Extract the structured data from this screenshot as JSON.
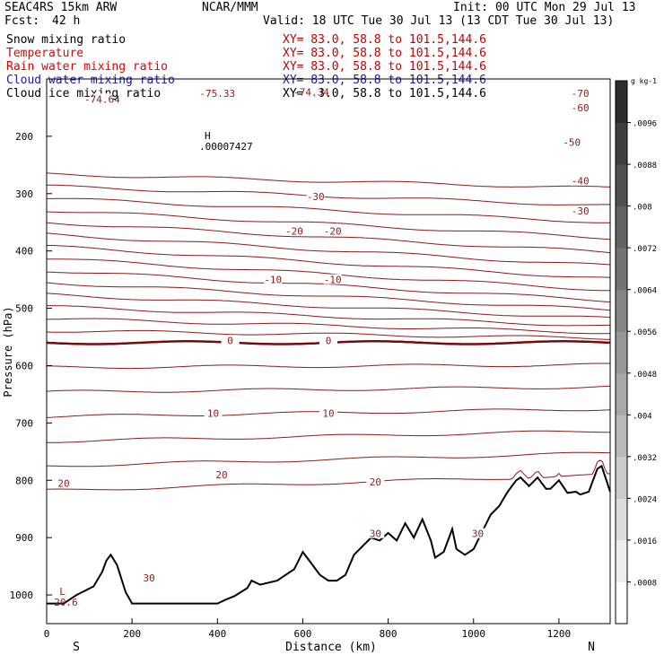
{
  "header": {
    "model": "SEAC4RS 15km ARW",
    "center": "NCAR/MMM",
    "init": "Init: 00 UTC Mon 29 Jul 13",
    "fcst_label": "Fcst:",
    "fcst_value": "42 h",
    "valid": "Valid: 18 UTC Tue 30 Jul 13 (13 CDT Tue 30 Jul 13)"
  },
  "fields": [
    {
      "name": "Snow mixing ratio",
      "xy": "XY= 83.0, 58.8 to 101.5,144.6",
      "color": "#000000"
    },
    {
      "name": "Temperature",
      "xy": "XY= 83.0, 58.8 to 101.5,144.6",
      "color": "#b01818"
    },
    {
      "name": "Rain water mixing ratio",
      "xy": "XY= 83.0, 58.8 to 101.5,144.6",
      "color": "#e00000"
    },
    {
      "name": "Cloud water mixing ratio",
      "xy": "XY= 83.0, 58.8 to 101.5,144.6",
      "color": "#1a1aa0"
    },
    {
      "name": "Cloud ice mixing ratio",
      "xy": "XY= 83.0, 58.8 to 101.5,144.6",
      "color": "#000000"
    }
  ],
  "chart_data": {
    "type": "cross-section",
    "xlabel": "Distance (km)",
    "ylabel": "Pressure (hPa)",
    "xlim": [
      0,
      1320
    ],
    "ylim": [
      1050,
      100
    ],
    "x_ticks": [
      "0",
      "200",
      "400",
      "600",
      "800",
      "1000",
      "1200"
    ],
    "x_tick_values": [
      0,
      200,
      400,
      600,
      800,
      1000,
      1200
    ],
    "y_ticks": [
      "200",
      "300",
      "400",
      "500",
      "600",
      "700",
      "800",
      "900",
      "1000"
    ],
    "y_tick_values": [
      200,
      300,
      400,
      500,
      600,
      700,
      800,
      900,
      1000
    ],
    "x_end_labels": {
      "left": "S",
      "right": "N"
    },
    "temperature_contour_interval_C": 5,
    "temperature_contour_labels": [
      {
        "text": "-75.33",
        "x": 400,
        "p": 125
      },
      {
        "text": "-74.64",
        "x": 130,
        "p": 135
      },
      {
        "text": "-74.34",
        "x": 620,
        "p": 123
      },
      {
        "text": "-70",
        "x": 1250,
        "p": 125
      },
      {
        "text": "-60",
        "x": 1250,
        "p": 150
      },
      {
        "text": "-50",
        "x": 1230,
        "p": 210
      },
      {
        "text": "-40",
        "x": 1250,
        "p": 278
      },
      {
        "text": "-30",
        "x": 630,
        "p": 305
      },
      {
        "text": "-30",
        "x": 1250,
        "p": 330
      },
      {
        "text": "-20",
        "x": 580,
        "p": 365
      },
      {
        "text": "-20",
        "x": 670,
        "p": 365
      },
      {
        "text": "-10",
        "x": 530,
        "p": 450
      },
      {
        "text": "-10",
        "x": 670,
        "p": 450
      },
      {
        "text": "0",
        "x": 430,
        "p": 556
      },
      {
        "text": "0",
        "x": 660,
        "p": 556
      },
      {
        "text": "10",
        "x": 390,
        "p": 683
      },
      {
        "text": "10",
        "x": 660,
        "p": 683
      },
      {
        "text": "20",
        "x": 40,
        "p": 805
      },
      {
        "text": "20",
        "x": 410,
        "p": 790
      },
      {
        "text": "20",
        "x": 770,
        "p": 803
      },
      {
        "text": "30",
        "x": 240,
        "p": 970
      },
      {
        "text": "30",
        "x": 770,
        "p": 893
      },
      {
        "text": "30",
        "x": 1010,
        "p": 893
      }
    ],
    "extrema": [
      {
        "type": "H",
        "value": ".00007427",
        "x": 370,
        "p": 205
      },
      {
        "type": "L",
        "value": "20.6",
        "x": 30,
        "p": 1000
      }
    ],
    "terrain_pressure": {
      "x": [
        0,
        40,
        70,
        110,
        130,
        140,
        150,
        165,
        185,
        200,
        215,
        300,
        400,
        420,
        440,
        470,
        480,
        500,
        540,
        580,
        600,
        620,
        640,
        660,
        680,
        700,
        720,
        740,
        760,
        780,
        800,
        820,
        840,
        860,
        880,
        900,
        910,
        930,
        950,
        960,
        980,
        1000,
        1020,
        1040,
        1060,
        1080,
        1100,
        1110,
        1130,
        1150,
        1170,
        1180,
        1200,
        1220,
        1240,
        1250,
        1270,
        1290,
        1300,
        1320
      ],
      "p": [
        1015,
        1015,
        1000,
        985,
        960,
        940,
        930,
        948,
        995,
        1015,
        1015,
        1015,
        1015,
        1008,
        1002,
        988,
        975,
        982,
        975,
        955,
        925,
        945,
        965,
        975,
        975,
        965,
        930,
        915,
        900,
        905,
        892,
        905,
        875,
        900,
        868,
        905,
        935,
        925,
        885,
        920,
        930,
        920,
        890,
        860,
        845,
        820,
        800,
        795,
        810,
        795,
        815,
        815,
        800,
        822,
        820,
        825,
        820,
        780,
        775,
        820
      ]
    },
    "colorbar": {
      "unit": "g kg-1",
      "labels": [
        ".0096",
        ".0088",
        ".008",
        ".0072",
        ".0064",
        ".0056",
        ".0048",
        ".004",
        ".0032",
        ".0024",
        ".0016",
        ".0008"
      ],
      "label_values": [
        0.0096,
        0.0088,
        0.008,
        0.0072,
        0.0064,
        0.0056,
        0.0048,
        0.004,
        0.0032,
        0.0024,
        0.0016,
        0.0008
      ],
      "range": [
        0,
        0.0104
      ]
    },
    "colors": {
      "contour": "#8b1a1a",
      "zero_contour": "#7a0a0a",
      "terrain": "#000000"
    }
  }
}
